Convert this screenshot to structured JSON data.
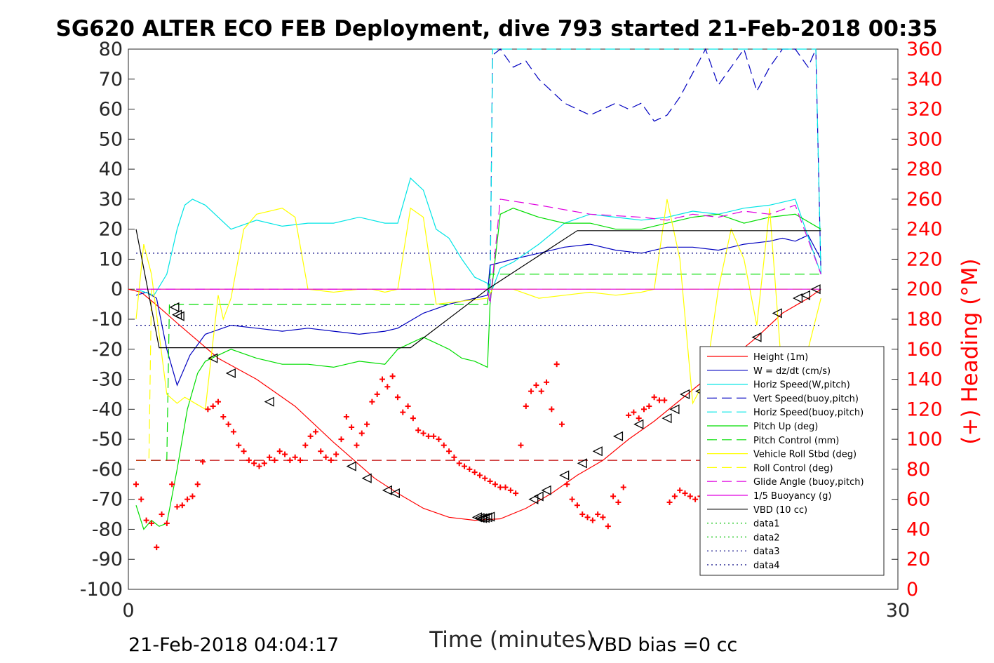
{
  "chart_data": {
    "type": "line",
    "title": "SG620 ALTER ECO FEB Deployment, dive 793 started 21-Feb-2018 00:35",
    "xlabel": "Time (minutes)",
    "ylabel_right": "(+) Heading (°M)",
    "xlim": [
      0,
      30
    ],
    "ylim_left": [
      -100,
      80
    ],
    "ylim_right": [
      0,
      360
    ],
    "xticks": [
      "0",
      "30"
    ],
    "yticks_left": [
      "80",
      "70",
      "60",
      "50",
      "40",
      "30",
      "20",
      "10",
      "0",
      "-10",
      "-20",
      "-30",
      "-40",
      "-50",
      "-60",
      "-70",
      "-80",
      "-90",
      "-100"
    ],
    "yticks_right": [
      "360",
      "340",
      "320",
      "300",
      "280",
      "260",
      "240",
      "220",
      "200",
      "180",
      "160",
      "140",
      "120",
      "100",
      "80",
      "60",
      "40",
      "20",
      "0"
    ],
    "footer_left": "21-Feb-2018 04:04:17",
    "footer_right": "VBD bias =0 cc",
    "legend_position": "lower-right",
    "legend": [
      {
        "label": "Height (1m)",
        "color": "#ff0000",
        "dash": "solid"
      },
      {
        "label": "W = dz/dt (cm/s)",
        "color": "#0000c0",
        "dash": "solid"
      },
      {
        "label": "Horiz Speed(W,pitch)",
        "color": "#00e5e5",
        "dash": "solid"
      },
      {
        "label": "Vert Speed(buoy,pitch)",
        "color": "#0000c0",
        "dash": "dashed"
      },
      {
        "label": "Horiz Speed(buoy,pitch)",
        "color": "#00e5e5",
        "dash": "dashed"
      },
      {
        "label": "Pitch Up (deg)",
        "color": "#00dd00",
        "dash": "solid"
      },
      {
        "label": "Pitch Control (mm)",
        "color": "#00dd00",
        "dash": "dashed"
      },
      {
        "label": "Vehicle Roll Stbd (deg)",
        "color": "#ffff00",
        "dash": "solid"
      },
      {
        "label": "Roll Control (deg)",
        "color": "#ffff00",
        "dash": "dashed"
      },
      {
        "label": "Glide Angle (buoy,pitch)",
        "color": "#e000e0",
        "dash": "dashed"
      },
      {
        "label": "1/5 Buoyancy (g)",
        "color": "#e000e0",
        "dash": "solid"
      },
      {
        "label": "VBD (10 cc)",
        "color": "#000000",
        "dash": "solid"
      },
      {
        "label": "data1",
        "color": "#00c000",
        "dash": "dotted"
      },
      {
        "label": "data2",
        "color": "#00c000",
        "dash": "dotted"
      },
      {
        "label": "data3",
        "color": "#000080",
        "dash": "dotted"
      },
      {
        "label": "data4",
        "color": "#000080",
        "dash": "dotted"
      }
    ],
    "series": [
      {
        "name": "Height (1m)",
        "color": "#ff0000",
        "dash": "solid",
        "x": [
          0,
          0.5,
          1.2,
          2.0,
          3.5,
          5.0,
          6.5,
          8.0,
          8.8,
          9.6,
          10.5,
          11.5,
          12.5,
          13.5,
          14.5,
          15.5,
          16.5,
          17.5,
          18.5,
          19.5,
          20.5,
          21.5,
          22.5,
          23.5,
          24.5,
          25.5,
          26.5,
          27.0
        ],
        "y": [
          0,
          -1,
          -6,
          -12,
          -23,
          -30,
          -39,
          -51,
          -57,
          -63,
          -68,
          -73,
          -76,
          -77,
          -76.5,
          -73,
          -68,
          -62,
          -57,
          -50,
          -44,
          -37,
          -30,
          -23,
          -16,
          -8,
          -3,
          0
        ]
      },
      {
        "name": "W = dz/dt (cm/s)",
        "color": "#0000c0",
        "dash": "solid",
        "x": [
          0.3,
          0.7,
          1.1,
          1.5,
          1.9,
          2.4,
          3.0,
          4.0,
          5.0,
          6.0,
          7.0,
          8.0,
          9.0,
          10.0,
          10.5,
          11.5,
          12.5,
          13.5,
          14.0,
          14.1,
          15.0,
          16.0,
          17.0,
          18.0,
          19.0,
          20.0,
          21.0,
          22.0,
          23.0,
          24.0,
          25.0,
          25.5,
          26.0,
          26.5,
          27.0
        ],
        "y": [
          -2,
          -1,
          -3,
          -20,
          -32,
          -22,
          -15,
          -12,
          -13,
          -14,
          -13,
          -14,
          -15,
          -14,
          -13,
          -8,
          -5,
          -3,
          -2,
          8,
          10,
          12,
          14,
          15,
          13,
          12,
          14,
          14,
          13,
          15,
          16,
          17,
          16,
          18,
          10
        ]
      },
      {
        "name": "Horiz Speed(W,pitch)",
        "color": "#00e5e5",
        "dash": "solid",
        "x": [
          0.3,
          1.0,
          1.5,
          1.9,
          2.2,
          2.5,
          3.0,
          4.0,
          5.0,
          6.0,
          7.0,
          8.0,
          9.0,
          10.0,
          10.5,
          11.0,
          11.5,
          12.0,
          12.5,
          13.0,
          13.5,
          14.0,
          14.1,
          14.5,
          15.0,
          16.0,
          17.0,
          18.0,
          19.0,
          20.0,
          21.0,
          22.0,
          23.0,
          24.0,
          25.0,
          26.0,
          27.0
        ],
        "y": [
          0,
          -2,
          5,
          20,
          28,
          30,
          28,
          20,
          23,
          21,
          22,
          22,
          24,
          22,
          22,
          37,
          33,
          20,
          17,
          10,
          4,
          2,
          -2,
          7,
          9,
          15,
          22,
          25,
          24,
          23,
          24,
          26,
          25,
          27,
          28,
          30,
          5
        ]
      },
      {
        "name": "Vert Speed(buoy,pitch)",
        "color": "#0000c0",
        "dash": "dashed",
        "x": [
          14.1,
          14.2,
          14.5,
          15.0,
          15.5,
          16.0,
          16.5,
          17.0,
          17.5,
          18.0,
          18.5,
          19.0,
          19.5,
          20.0,
          20.5,
          21.0,
          21.5,
          22.0,
          22.5,
          23.0,
          23.5,
          24.0,
          24.5,
          25.0,
          25.5,
          26.0,
          26.5,
          26.8,
          27.0
        ],
        "y": [
          0,
          78,
          80,
          74,
          76,
          70,
          66,
          62,
          60,
          58,
          60,
          62,
          60,
          62,
          56,
          58,
          64,
          72,
          80,
          68,
          74,
          80,
          66,
          74,
          80,
          80,
          74,
          80,
          5
        ]
      },
      {
        "name": "Horiz Speed(buoy,pitch)",
        "color": "#00e5e5",
        "dash": "dashed",
        "x": [
          14.0,
          14.1,
          14.2,
          26.8,
          27.0
        ],
        "y": [
          0,
          -5,
          80,
          80,
          5
        ]
      },
      {
        "name": "Pitch Up (deg)",
        "color": "#00dd00",
        "dash": "solid",
        "x": [
          0.3,
          0.6,
          0.9,
          1.2,
          1.5,
          1.9,
          2.3,
          2.7,
          3.0,
          3.5,
          4.0,
          5.0,
          6.0,
          7.0,
          8.0,
          9.0,
          10.0,
          10.5,
          11.0,
          11.5,
          12.0,
          12.5,
          13.0,
          13.5,
          14.0,
          14.1,
          14.5,
          15.0,
          16.0,
          17.0,
          18.0,
          19.0,
          20.0,
          21.0,
          22.0,
          23.0,
          24.0,
          25.0,
          26.0,
          27.0
        ],
        "y": [
          -72,
          -80,
          -77,
          -79,
          -78,
          -60,
          -40,
          -28,
          -24,
          -22,
          -20,
          -23,
          -25,
          -25,
          -26,
          -24,
          -25,
          -20,
          -18,
          -16,
          -18,
          -20,
          -23,
          -24,
          -26,
          -5,
          25,
          27,
          24,
          22,
          22,
          20,
          20,
          22,
          24,
          25,
          22,
          24,
          25,
          20
        ]
      },
      {
        "name": "Pitch Control (mm)",
        "color": "#00dd00",
        "dash": "dashed",
        "x": [
          0.3,
          1.5,
          1.6,
          2.0,
          14.0,
          14.1,
          27.0
        ],
        "y": [
          -57,
          -57,
          -5,
          -5,
          -5,
          5,
          5
        ]
      },
      {
        "name": "Vehicle Roll Stbd (deg)",
        "color": "#ffff00",
        "dash": "solid",
        "x": [
          0.3,
          0.6,
          0.9,
          1.2,
          1.5,
          1.9,
          2.2,
          2.6,
          3.0,
          3.5,
          3.7,
          4.0,
          4.5,
          5.0,
          6.0,
          6.5,
          7.0,
          8.0,
          9.0,
          9.5,
          10.0,
          10.5,
          11.0,
          11.5,
          12.0,
          13.0,
          14.0,
          14.2,
          15.0,
          16.0,
          17.0,
          18.0,
          19.0,
          20.0,
          20.5,
          21.0,
          21.5,
          22.0,
          22.5,
          23.0,
          23.5,
          24.0,
          24.5,
          25.0,
          25.5,
          26.0,
          26.5,
          27.0
        ],
        "y": [
          -10,
          15,
          5,
          -15,
          -35,
          -38,
          -36,
          -38,
          -40,
          -2,
          -10,
          -3,
          20,
          25,
          27,
          24,
          0,
          -1,
          0,
          0,
          -1,
          0,
          27,
          24,
          -5,
          -4,
          -3,
          0,
          0,
          -3,
          -2,
          -1,
          -2,
          -1,
          0,
          30,
          10,
          -38,
          -30,
          0,
          20,
          10,
          -12,
          27,
          -30,
          -40,
          -20,
          -3
        ]
      },
      {
        "name": "Roll Control (deg)",
        "color": "#ffff00",
        "dash": "dashed",
        "x": [
          0.3,
          0.8,
          0.9,
          27.0
        ],
        "y": [
          -57,
          -57,
          0,
          0
        ]
      },
      {
        "name": "Glide Angle (buoy,pitch)",
        "color": "#e000e0",
        "dash": "dashed",
        "x": [
          0.3,
          14.0,
          14.1,
          14.5,
          16.0,
          18.0,
          20.0,
          21.0,
          22.0,
          23.0,
          24.0,
          25.0,
          26.0,
          27.0
        ],
        "y": [
          0,
          0,
          -5,
          30,
          28,
          25,
          24,
          23,
          25,
          24,
          26,
          25,
          28,
          5
        ]
      },
      {
        "name": "1/5 Buoyancy (g)",
        "color": "#e000e0",
        "dash": "solid",
        "x": [
          0.3,
          14.0,
          14.1,
          27.0
        ],
        "y": [
          0,
          0,
          0,
          0
        ]
      },
      {
        "name": "VBD (10 cc)",
        "color": "#000000",
        "dash": "solid",
        "x": [
          0.3,
          1.2,
          11.0,
          14.0,
          17.5,
          27.0
        ],
        "y": [
          20,
          -19.5,
          -19.5,
          0,
          19.5,
          19.5
        ]
      },
      {
        "name": "data3",
        "color": "#000080",
        "dash": "dotted",
        "x": [
          0.3,
          27.0
        ],
        "y": [
          12,
          12
        ]
      },
      {
        "name": "data4",
        "color": "#000080",
        "dash": "dotted",
        "x": [
          0.3,
          27.0
        ],
        "y": [
          -12,
          -12
        ]
      },
      {
        "name": "Heading reference",
        "color": "#c00000",
        "dash": "dashed",
        "x": [
          0.3,
          27.0
        ],
        "y": [
          -57,
          -57
        ]
      }
    ],
    "heading_points": {
      "color": "#ff0000",
      "x": [
        0.3,
        0.5,
        0.7,
        0.9,
        1.1,
        1.3,
        1.5,
        1.7,
        1.9,
        2.1,
        2.3,
        2.5,
        2.7,
        2.9,
        3.1,
        3.3,
        3.5,
        3.7,
        3.9,
        4.1,
        4.3,
        4.5,
        4.7,
        4.9,
        5.1,
        5.3,
        5.5,
        5.7,
        5.9,
        6.1,
        6.3,
        6.5,
        6.7,
        6.9,
        7.1,
        7.3,
        7.5,
        7.7,
        7.9,
        8.1,
        8.3,
        8.5,
        8.7,
        8.9,
        9.1,
        9.3,
        9.5,
        9.7,
        9.9,
        10.1,
        10.3,
        10.5,
        10.7,
        10.9,
        11.1,
        11.3,
        11.5,
        11.7,
        11.9,
        12.1,
        12.3,
        12.5,
        12.7,
        12.9,
        13.1,
        13.3,
        13.5,
        13.7,
        13.9,
        14.1,
        14.3,
        14.5,
        14.7,
        14.9,
        15.1,
        15.3,
        15.5,
        15.7,
        15.9,
        16.1,
        16.3,
        16.5,
        16.7,
        16.9,
        17.1,
        17.3,
        17.5,
        17.7,
        17.9,
        18.1,
        18.3,
        18.5,
        18.7,
        18.9,
        19.1,
        19.3,
        19.5,
        19.7,
        19.9,
        20.1,
        20.3,
        20.5,
        20.7,
        20.9,
        21.1,
        21.3,
        21.5,
        21.7,
        21.9,
        22.1,
        22.3,
        22.5,
        22.7,
        22.9,
        23.1,
        23.3,
        23.5,
        23.7,
        23.9,
        24.1,
        24.3,
        24.5,
        24.7,
        24.9,
        25.1,
        25.3,
        25.5,
        25.7,
        25.9,
        26.1,
        26.3,
        26.5,
        26.7,
        26.9
      ],
      "y": [
        70,
        60,
        46,
        44,
        28,
        50,
        44,
        70,
        55,
        56,
        60,
        62,
        70,
        85,
        120,
        122,
        125,
        115,
        110,
        105,
        96,
        92,
        86,
        84,
        82,
        84,
        88,
        86,
        92,
        90,
        86,
        88,
        86,
        96,
        102,
        105,
        92,
        88,
        86,
        90,
        100,
        115,
        108,
        96,
        104,
        110,
        125,
        130,
        140,
        135,
        142,
        128,
        118,
        122,
        114,
        106,
        104,
        102,
        102,
        100,
        96,
        92,
        88,
        84,
        82,
        80,
        78,
        76,
        74,
        72,
        70,
        68,
        68,
        66,
        64,
        96,
        122,
        132,
        136,
        132,
        138,
        120,
        150,
        110,
        70,
        60,
        56,
        50,
        48,
        46,
        50,
        48,
        42,
        62,
        58,
        68,
        116,
        118,
        114,
        120,
        122,
        128,
        126,
        126,
        58,
        62,
        66,
        64,
        62,
        60,
        62,
        56,
        58,
        52,
        50,
        70,
        60,
        58,
        52,
        46,
        64,
        70,
        100,
        110,
        80,
        76,
        60,
        80,
        68,
        60,
        46,
        52,
        48,
        40
      ]
    },
    "markers": {
      "x": [
        1.8,
        1.9,
        2.0,
        3.3,
        4.0,
        5.5,
        8.7,
        9.3,
        10.1,
        10.4,
        13.6,
        13.7,
        13.8,
        13.9,
        14.0,
        14.1,
        15.8,
        16.0,
        16.3,
        17.0,
        17.7,
        18.3,
        19.1,
        19.9,
        21.0,
        21.3,
        21.7,
        22.3,
        23.0,
        23.7,
        24.5,
        25.3,
        26.1,
        26.4,
        26.8
      ],
      "y": [
        -6,
        -8.5,
        -9,
        -23,
        -28,
        -37.5,
        -59,
        -63,
        -67,
        -68,
        -76,
        -76.2,
        -76.3,
        -76.2,
        -76,
        -75.8,
        -70,
        -69,
        -67,
        -62,
        -58,
        -54,
        -49,
        -45,
        -43,
        -40,
        -35,
        -34,
        -30,
        -23,
        -16,
        -8,
        -3,
        -2,
        0
      ]
    }
  }
}
